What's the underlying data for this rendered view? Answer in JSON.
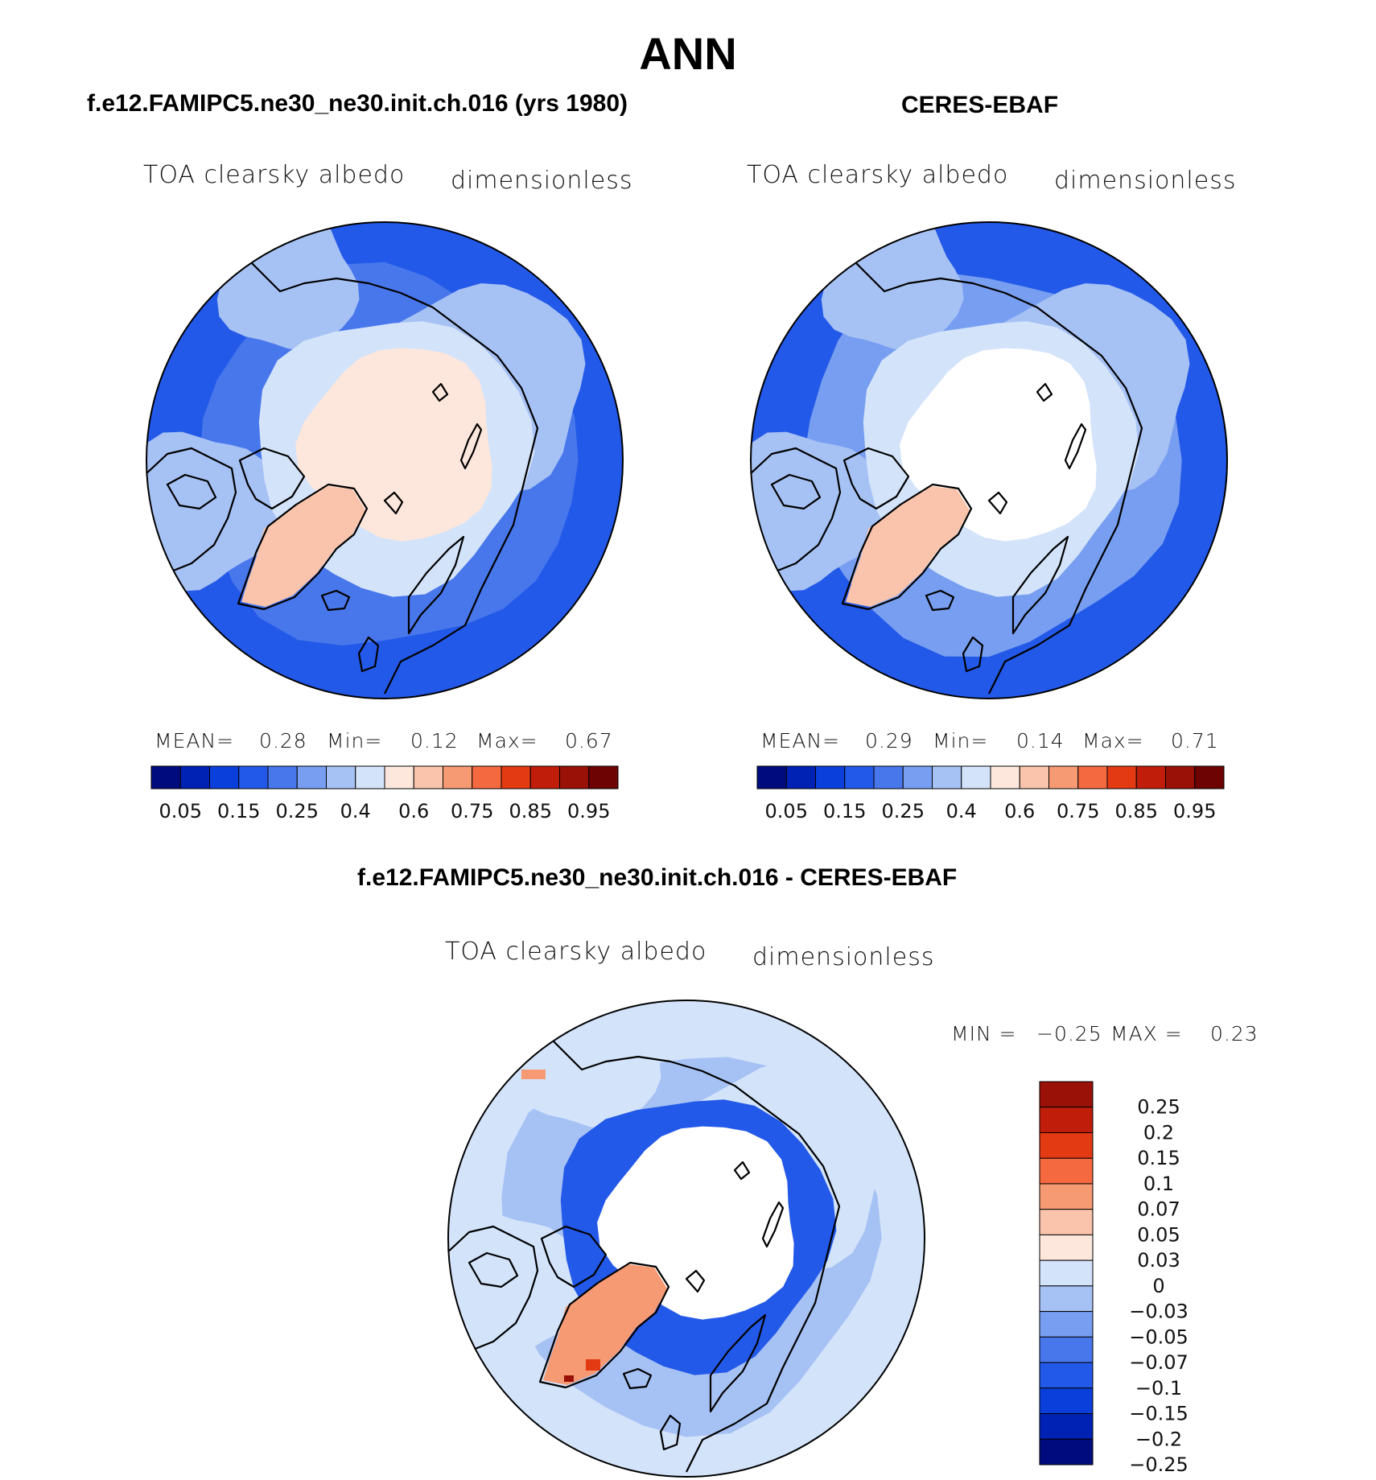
{
  "figure": {
    "title": "ANN"
  },
  "colors": {
    "abs_scale": [
      "#000c7d",
      "#0022b4",
      "#0b3fdc",
      "#2359e8",
      "#4877ec",
      "#779ef0",
      "#a6c1f4",
      "#d3e3fa",
      "#fde7dc",
      "#f9c4ab",
      "#f69a74",
      "#f4693f",
      "#e33a14",
      "#c01e0b",
      "#9a1108",
      "#6e0303"
    ],
    "diff_scale": [
      "#000c7d",
      "#0022b4",
      "#0b3fdc",
      "#2359e8",
      "#4877ec",
      "#779ef0",
      "#a6c1f4",
      "#d3e3fa",
      "#fde7dc",
      "#f9c4ab",
      "#f69a74",
      "#f4693f",
      "#e33a14",
      "#c01e0b",
      "#9a1108"
    ],
    "land_outline": "#000000"
  },
  "chart_data": [
    {
      "type": "heatmap",
      "projection": "north-polar-stereographic",
      "case_title": "f.e12.FAMIPC5.ne30_ne30.init.ch.016 (yrs 1980)",
      "variable": "TOA clearsky albedo",
      "units": "dimensionless",
      "stats": {
        "mean_label": "MEAN=",
        "mean": "0.28",
        "min_label": "Min=",
        "min": "0.12",
        "max_label": "Max=",
        "max": "0.67"
      },
      "colorbar_ticks": [
        "0.05",
        "0.15",
        "0.25",
        "0.4",
        "0.6",
        "0.75",
        "0.85",
        "0.95"
      ],
      "levels": [
        0.05,
        0.1,
        0.15,
        0.2,
        0.25,
        0.3,
        0.4,
        0.5,
        0.6,
        0.7,
        0.75,
        0.8,
        0.85,
        0.9,
        0.95
      ],
      "field": {
        "open_ocean_south": 0.17,
        "ocean_mid": 0.22,
        "continents": 0.32,
        "sea_ice_ring": 0.45,
        "arctic_core": 0.55,
        "greenland": 0.62
      }
    },
    {
      "type": "heatmap",
      "projection": "north-polar-stereographic",
      "case_title": "CERES-EBAF",
      "variable": "TOA clearsky albedo",
      "units": "dimensionless",
      "stats": {
        "mean_label": "MEAN=",
        "mean": "0.29",
        "min_label": "Min=",
        "min": "0.14",
        "max_label": "Max=",
        "max": "0.71"
      },
      "colorbar_ticks": [
        "0.05",
        "0.15",
        "0.25",
        "0.4",
        "0.6",
        "0.75",
        "0.85",
        "0.95"
      ],
      "levels": [
        0.05,
        0.1,
        0.15,
        0.2,
        0.25,
        0.3,
        0.4,
        0.5,
        0.6,
        0.7,
        0.75,
        0.8,
        0.85,
        0.9,
        0.95
      ],
      "field": {
        "open_ocean_south": 0.17,
        "ocean_mid": 0.26,
        "continents": 0.33,
        "sea_ice_ring": 0.45,
        "arctic_core": "missing",
        "greenland": 0.62
      }
    },
    {
      "type": "heatmap",
      "projection": "north-polar-stereographic",
      "case_title": "f.e12.FAMIPC5.ne30_ne30.init.ch.016 - CERES-EBAF",
      "variable": "TOA clearsky albedo",
      "units": "dimensionless",
      "stats": {
        "min_label": "MIN =",
        "min": "−0.25",
        "max_label": "MAX =",
        "max": "0.23"
      },
      "colorbar_ticks": [
        "0.25",
        "0.2",
        "0.15",
        "0.1",
        "0.07",
        "0.05",
        "0.03",
        "0",
        "−0.03",
        "−0.05",
        "−0.07",
        "−0.1",
        "−0.15",
        "−0.2",
        "−0.25"
      ],
      "levels": [
        -0.25,
        -0.2,
        -0.15,
        -0.1,
        -0.07,
        -0.05,
        -0.03,
        0,
        0.03,
        0.05,
        0.07,
        0.1,
        0.15,
        0.2,
        0.25
      ],
      "field": {
        "open_ocean_south": -0.01,
        "ocean_mid": -0.05,
        "continents": -0.03,
        "sea_ice_ring": -0.15,
        "arctic_core": "missing",
        "greenland": 0.05
      }
    }
  ]
}
